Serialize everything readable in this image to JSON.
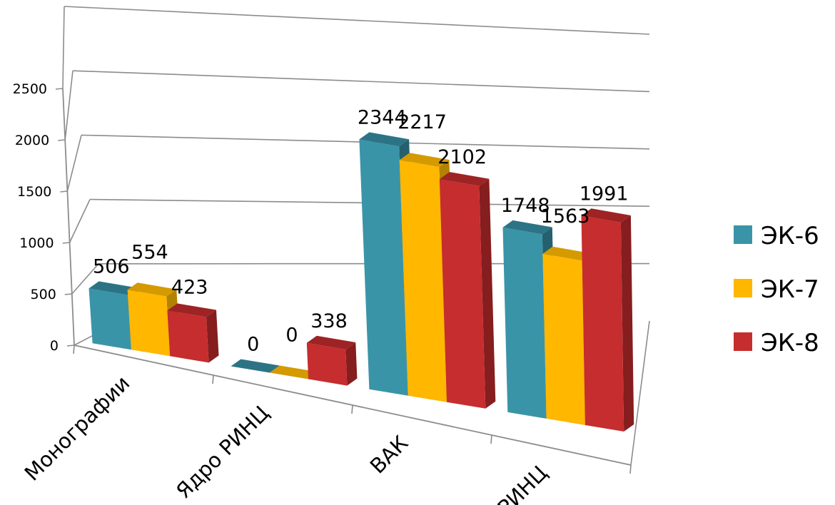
{
  "chart_data": {
    "type": "bar",
    "categories": [
      "Монографии",
      "Ядро РИНЦ",
      "ВАК",
      "РИНЦ"
    ],
    "series": [
      {
        "name": "ЭК-6",
        "values": [
          506,
          0,
          2344,
          1748
        ],
        "labels": [
          "506",
          "0",
          "2344",
          "1748"
        ]
      },
      {
        "name": "ЭК-7",
        "values": [
          554,
          0,
          2217,
          1563
        ],
        "labels": [
          "554",
          "0",
          "2217",
          "1563"
        ]
      },
      {
        "name": "ЭК-8",
        "values": [
          423,
          338,
          2102,
          1991
        ],
        "labels": [
          "423",
          "338",
          "2102",
          "1991"
        ]
      }
    ],
    "yticks": [
      "0",
      "500",
      "1000",
      "1500",
      "2000",
      "2500"
    ],
    "ylim": [
      0,
      2500
    ],
    "grid": true,
    "legend_position": "right",
    "colors": {
      "ЭК-6": {
        "front": "#3a94a8",
        "top": "#2c7485",
        "side": "#24606e"
      },
      "ЭК-7": {
        "front": "#ffb700",
        "top": "#d49a00",
        "side": "#b38200"
      },
      "ЭК-8": {
        "front": "#c62d2e",
        "top": "#9e2324",
        "side": "#861d1e"
      }
    }
  }
}
